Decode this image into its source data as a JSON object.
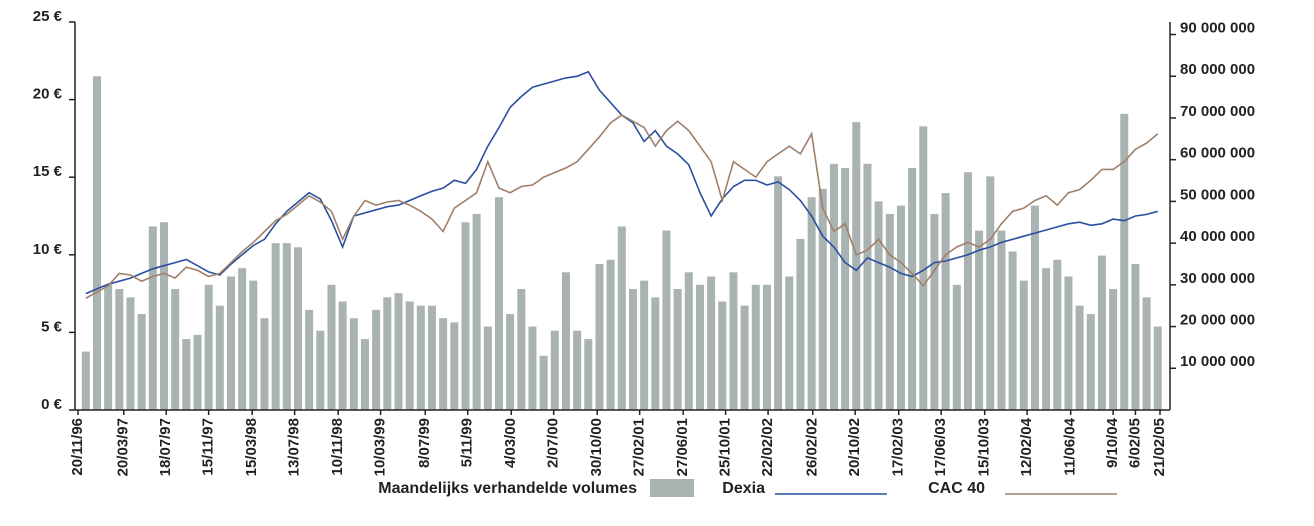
{
  "chart_data": {
    "type": "bar-line",
    "categories": [
      null,
      null,
      null,
      null,
      null,
      null,
      null,
      null,
      null,
      null,
      null,
      null,
      null,
      null,
      null,
      null,
      null,
      null,
      null,
      null,
      null,
      null,
      null,
      null,
      null,
      null,
      null,
      null,
      null,
      null,
      null,
      null,
      null,
      null,
      null,
      null,
      null,
      null,
      null,
      null,
      null,
      null,
      null,
      null,
      null,
      null,
      null,
      null,
      null,
      null,
      null,
      null,
      null,
      null,
      null,
      null,
      null,
      null,
      null,
      null,
      null,
      null,
      null,
      null,
      null,
      null,
      null,
      null,
      null,
      null,
      null,
      null,
      null,
      null,
      null,
      null,
      null,
      null,
      null,
      null,
      null,
      null,
      null,
      null,
      null,
      null,
      null,
      null,
      null,
      null,
      null,
      null,
      null,
      null,
      null,
      null,
      null
    ],
    "series": [
      {
        "name": "Maandelijks verhandelde volumes",
        "type": "bar",
        "axis": "y2",
        "color": "#a9b3b1",
        "values": [
          14000000,
          80000000,
          30000000,
          29000000,
          27000000,
          23000000,
          44000000,
          45000000,
          29000000,
          17000000,
          18000000,
          30000000,
          25000000,
          32000000,
          34000000,
          31000000,
          22000000,
          40000000,
          40000000,
          39000000,
          24000000,
          19000000,
          30000000,
          26000000,
          22000000,
          17000000,
          24000000,
          27000000,
          28000000,
          26000000,
          25000000,
          25000000,
          22000000,
          21000000,
          45000000,
          47000000,
          20000000,
          51000000,
          23000000,
          29000000,
          20000000,
          13000000,
          19000000,
          33000000,
          19000000,
          17000000,
          35000000,
          36000000,
          44000000,
          29000000,
          31000000,
          27000000,
          43000000,
          29000000,
          33000000,
          30000000,
          32000000,
          26000000,
          33000000,
          25000000,
          30000000,
          30000000,
          56000000,
          32000000,
          41000000,
          51000000,
          53000000,
          59000000,
          58000000,
          69000000,
          59000000,
          50000000,
          47000000,
          49000000,
          58000000,
          68000000,
          47000000,
          52000000,
          30000000,
          57000000,
          43000000,
          56000000,
          43000000,
          38000000,
          31000000,
          49000000,
          34000000,
          36000000,
          32000000,
          25000000,
          23000000,
          37000000,
          29000000,
          71000000,
          35000000,
          27000000,
          20000000
        ]
      },
      {
        "name": "Dexia",
        "type": "line",
        "color": "#2b4fa0",
        "values": [
          7.5,
          7.8,
          8.1,
          8.3,
          8.5,
          8.8,
          9.1,
          9.3,
          9.5,
          9.7,
          9.3,
          8.9,
          8.7,
          9.4,
          10,
          10.6,
          11,
          12,
          12.8,
          13.4,
          14,
          13.6,
          12.2,
          10.5,
          12.5,
          12.7,
          12.9,
          13.1,
          13.2,
          13.5,
          13.8,
          14.1,
          14.3,
          14.8,
          14.6,
          15.5,
          17,
          18.2,
          19.5,
          20.2,
          20.8,
          21,
          21.2,
          21.4,
          21.5,
          21.8,
          20.6,
          19.8,
          19,
          18.5,
          17.3,
          18,
          17,
          16.5,
          15.8,
          14,
          12.5,
          13.6,
          14.4,
          14.8,
          14.8,
          14.5,
          14.7,
          14.2,
          13.5,
          12.5,
          11.2,
          10.5,
          9.5,
          9,
          9.8,
          9.5,
          9.2,
          8.8,
          8.6,
          9,
          9.5,
          9.6,
          9.8,
          10,
          10.3,
          10.5,
          10.8,
          11,
          11.2,
          11.4,
          11.6,
          11.8,
          12,
          12.1,
          11.9,
          12,
          12.3,
          12.2,
          12.5,
          12.6,
          12.8
        ]
      },
      {
        "name": "CAC 40",
        "type": "line",
        "color": "#a0806a",
        "values": [
          7.2,
          7.6,
          8,
          8.8,
          8.7,
          8.3,
          8.6,
          8.8,
          8.5,
          9.2,
          9,
          8.6,
          8.8,
          9.5,
          10.2,
          10.8,
          11.5,
          12.2,
          12.6,
          13.2,
          13.8,
          13.4,
          12.8,
          11,
          12.5,
          13.5,
          13.2,
          13.4,
          13.5,
          13.2,
          12.8,
          12.3,
          11.5,
          13,
          13.5,
          14,
          16,
          14.3,
          14,
          14.4,
          14.5,
          15,
          15.3,
          15.6,
          16,
          16.8,
          17.6,
          18.5,
          19,
          18.6,
          18.2,
          17,
          18,
          18.6,
          18,
          17,
          16,
          13.5,
          16,
          15.5,
          15,
          16,
          16.5,
          17,
          16.5,
          17.8,
          13,
          11.5,
          12,
          10,
          10.3,
          11,
          10,
          9.5,
          8.8,
          8,
          9,
          10,
          10.5,
          10.8,
          10.5,
          11,
          12,
          12.8,
          13,
          13.5,
          13.8,
          13.2,
          14,
          14.2,
          14.8,
          15.5,
          15.5,
          16,
          16.8,
          17.2,
          17.8
        ]
      }
    ],
    "xlim": [
      -0.7,
      96.2
    ],
    "xticks": [
      {
        "value": -0.7,
        "label": "20/11/96"
      },
      {
        "value": 3.4,
        "label": "20/03/97"
      },
      {
        "value": 7.2,
        "label": "18/07/97"
      },
      {
        "value": 11,
        "label": "15/11/97"
      },
      {
        "value": 14.9,
        "label": "15/03/98"
      },
      {
        "value": 18.7,
        "label": "13/07/98"
      },
      {
        "value": 22.6,
        "label": "10/11/98"
      },
      {
        "value": 26.4,
        "label": "10/03/99"
      },
      {
        "value": 30.4,
        "label": "8/07/99"
      },
      {
        "value": 34.2,
        "label": "5/11/99"
      },
      {
        "value": 38.1,
        "label": "4/03/00"
      },
      {
        "value": 41.9,
        "label": "2/07/00"
      },
      {
        "value": 45.8,
        "label": "30/10/00"
      },
      {
        "value": 49.6,
        "label": "27/02/01"
      },
      {
        "value": 53.5,
        "label": "27/06/01"
      },
      {
        "value": 57.3,
        "label": "25/10/01"
      },
      {
        "value": 61.1,
        "label": "22/02/02"
      },
      {
        "value": 65.1,
        "label": "26/02/02"
      },
      {
        "value": 68.9,
        "label": "20/10/02"
      },
      {
        "value": 72.8,
        "label": "17/02/03"
      },
      {
        "value": 76.6,
        "label": "17/06/03"
      },
      {
        "value": 80.5,
        "label": "15/10/03"
      },
      {
        "value": 84.3,
        "label": "12/02/04"
      },
      {
        "value": 88.2,
        "label": "11/06/04"
      },
      {
        "value": 92,
        "label": "9/10/04"
      },
      {
        "value": 94,
        "label": "6/02/05"
      },
      {
        "value": 96.2,
        "label": "21/02/05"
      }
    ],
    "ylim": [
      0,
      25
    ],
    "yticks": [
      {
        "value": 0,
        "label": "0 €"
      },
      {
        "value": 5,
        "label": "5 €"
      },
      {
        "value": 10,
        "label": "10 €"
      },
      {
        "value": 15,
        "label": "15 €"
      },
      {
        "value": 20,
        "label": "20 €"
      },
      {
        "value": 25,
        "label": "25 €"
      }
    ],
    "y2lim": [
      0,
      93000000
    ],
    "y2ticks": [
      {
        "value": 10000000,
        "label": "10 000 000"
      },
      {
        "value": 20000000,
        "label": "20 000 000"
      },
      {
        "value": 30000000,
        "label": "30 000 000"
      },
      {
        "value": 40000000,
        "label": "40 000 000"
      },
      {
        "value": 50000000,
        "label": "50 000 000"
      },
      {
        "value": 60000000,
        "label": "60 000 000"
      },
      {
        "value": 70000000,
        "label": "70 000 000"
      },
      {
        "value": 80000000,
        "label": "80 000 000"
      },
      {
        "value": 90000000,
        "label": "90 000 000"
      }
    ],
    "legend": "bottom"
  }
}
